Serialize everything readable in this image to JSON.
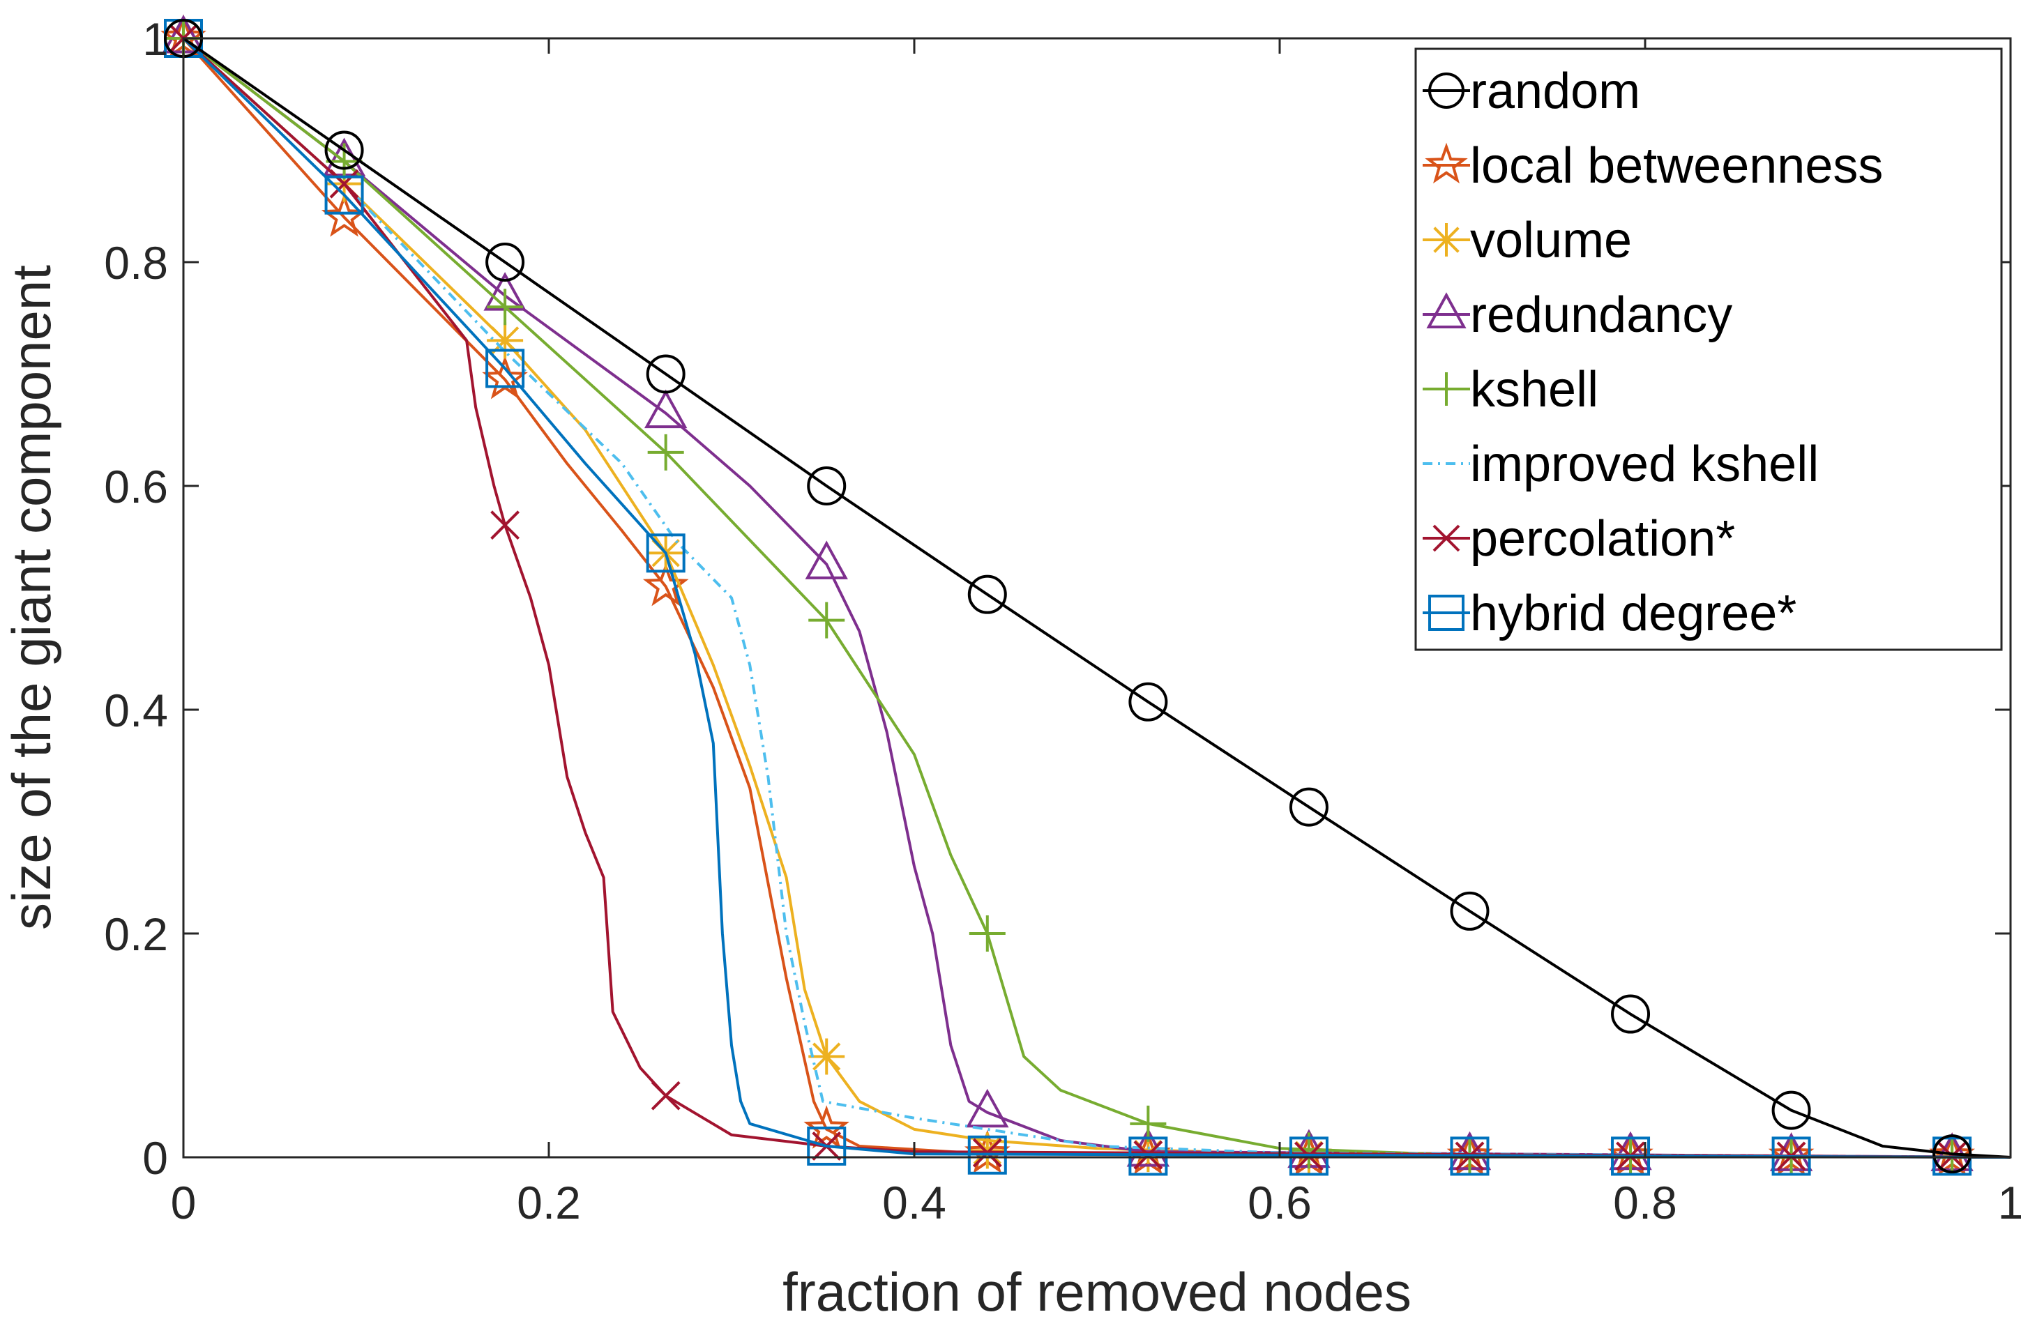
{
  "chart_data": {
    "type": "line",
    "xlabel": "fraction of removed nodes",
    "ylabel": "size of the giant component",
    "xlim": [
      0,
      1
    ],
    "ylim": [
      0,
      1
    ],
    "xticks": [
      0,
      0.2,
      0.4,
      0.6,
      0.8,
      1
    ],
    "yticks": [
      0,
      0.2,
      0.4,
      0.6,
      0.8,
      1
    ],
    "xtick_labels": [
      "0",
      "0.2",
      "0.4",
      "0.6",
      "0.8",
      "1"
    ],
    "ytick_labels": [
      "0",
      "0.2",
      "0.4",
      "0.6",
      "0.8",
      "1"
    ],
    "grid": false,
    "legend_position": "top-right",
    "marker_x": [
      0,
      0.088,
      0.176,
      0.264,
      0.352,
      0.44,
      0.528,
      0.616,
      0.704,
      0.792,
      0.88,
      0.968
    ],
    "series": [
      {
        "name": "random",
        "color": "#000000",
        "dash": "solid",
        "marker": "circle",
        "x": [
          0,
          0.088,
          0.176,
          0.264,
          0.352,
          0.44,
          0.528,
          0.616,
          0.704,
          0.792,
          0.88,
          0.93,
          0.968,
          1.0
        ],
        "y": [
          1.0,
          0.9,
          0.8,
          0.7,
          0.6,
          0.503,
          0.407,
          0.313,
          0.22,
          0.128,
          0.042,
          0.01,
          0.003,
          0.0
        ],
        "marker_y": [
          1.0,
          0.9,
          0.8,
          0.7,
          0.6,
          0.503,
          0.407,
          0.313,
          0.22,
          0.128,
          0.042,
          0.003
        ]
      },
      {
        "name": "local betweenness",
        "color": "#D95319",
        "dash": "solid",
        "marker": "star",
        "x": [
          0,
          0.088,
          0.176,
          0.21,
          0.24,
          0.264,
          0.29,
          0.31,
          0.33,
          0.345,
          0.352,
          0.37,
          0.44,
          1.0
        ],
        "y": [
          1.0,
          0.84,
          0.695,
          0.62,
          0.56,
          0.51,
          0.42,
          0.33,
          0.16,
          0.05,
          0.025,
          0.01,
          0.003,
          0.0
        ],
        "marker_y": [
          1.0,
          0.84,
          0.695,
          0.51,
          0.025,
          0.003,
          0.002,
          0.001,
          0.001,
          0.001,
          0.001,
          0.001
        ]
      },
      {
        "name": "volume",
        "color": "#EDB120",
        "dash": "solid",
        "marker": "asterisk",
        "x": [
          0,
          0.088,
          0.176,
          0.22,
          0.264,
          0.29,
          0.31,
          0.33,
          0.34,
          0.352,
          0.37,
          0.4,
          0.44,
          0.5,
          0.6,
          1.0
        ],
        "y": [
          1.0,
          0.87,
          0.73,
          0.65,
          0.54,
          0.44,
          0.35,
          0.25,
          0.15,
          0.09,
          0.05,
          0.025,
          0.015,
          0.008,
          0.003,
          0.0
        ],
        "marker_y": [
          1.0,
          0.87,
          0.73,
          0.54,
          0.09,
          0.006,
          0.003,
          0.002,
          0.001,
          0.001,
          0.001,
          0.001
        ]
      },
      {
        "name": "redundancy",
        "color": "#7E2F8E",
        "dash": "solid",
        "marker": "triangle",
        "x": [
          0,
          0.088,
          0.176,
          0.264,
          0.31,
          0.352,
          0.37,
          0.385,
          0.4,
          0.41,
          0.42,
          0.43,
          0.44,
          0.48,
          0.528,
          1.0
        ],
        "y": [
          1.0,
          0.89,
          0.77,
          0.665,
          0.6,
          0.53,
          0.47,
          0.38,
          0.26,
          0.2,
          0.1,
          0.05,
          0.04,
          0.015,
          0.005,
          0.0
        ],
        "marker_y": [
          1.0,
          0.89,
          0.77,
          0.665,
          0.53,
          0.04,
          0.005,
          0.004,
          0.002,
          0.002,
          0.001,
          0.001
        ]
      },
      {
        "name": "kshell",
        "color": "#77AC30",
        "dash": "solid",
        "marker": "plus",
        "x": [
          0,
          0.088,
          0.176,
          0.264,
          0.352,
          0.4,
          0.42,
          0.44,
          0.46,
          0.48,
          0.528,
          0.6,
          0.7,
          1.0
        ],
        "y": [
          1.0,
          0.89,
          0.76,
          0.63,
          0.48,
          0.36,
          0.27,
          0.2,
          0.09,
          0.06,
          0.03,
          0.008,
          0.002,
          0.0
        ],
        "marker_y": [
          1.0,
          0.89,
          0.76,
          0.63,
          0.48,
          0.2,
          0.03,
          0.006,
          0.0,
          0.0,
          0.0,
          0.0
        ]
      },
      {
        "name": "improved kshell",
        "color": "#4DBEEE",
        "dash": "dashdot",
        "marker": "none",
        "x": [
          0,
          0.088,
          0.176,
          0.24,
          0.27,
          0.3,
          0.31,
          0.32,
          0.33,
          0.34,
          0.35,
          0.4,
          0.5,
          0.6,
          1.0
        ],
        "y": [
          1.0,
          0.87,
          0.72,
          0.62,
          0.55,
          0.5,
          0.44,
          0.34,
          0.2,
          0.12,
          0.05,
          0.035,
          0.01,
          0.004,
          0.0
        ]
      },
      {
        "name": "percolation*",
        "color": "#A2142F",
        "dash": "solid",
        "marker": "cross",
        "x": [
          0,
          0.088,
          0.155,
          0.16,
          0.17,
          0.176,
          0.19,
          0.2,
          0.21,
          0.22,
          0.23,
          0.235,
          0.25,
          0.264,
          0.3,
          0.352,
          0.4,
          1.0
        ],
        "y": [
          1.0,
          0.87,
          0.73,
          0.67,
          0.6,
          0.565,
          0.5,
          0.44,
          0.34,
          0.29,
          0.25,
          0.13,
          0.08,
          0.055,
          0.02,
          0.01,
          0.005,
          0.0
        ],
        "marker_y": [
          1.0,
          0.87,
          0.565,
          0.055,
          0.01,
          0.004,
          0.002,
          0.001,
          0.001,
          0.001,
          0.001,
          0.001
        ]
      },
      {
        "name": "hybrid degree*",
        "color": "#0072BD",
        "dash": "solid",
        "marker": "square",
        "x": [
          0,
          0.088,
          0.176,
          0.22,
          0.264,
          0.28,
          0.29,
          0.295,
          0.3,
          0.305,
          0.31,
          0.352,
          0.4,
          1.0
        ],
        "y": [
          1.0,
          0.86,
          0.705,
          0.62,
          0.54,
          0.45,
          0.37,
          0.2,
          0.1,
          0.05,
          0.03,
          0.01,
          0.003,
          0.0
        ],
        "marker_y": [
          1.0,
          0.86,
          0.705,
          0.54,
          0.01,
          0.002,
          0.001,
          0.001,
          0.001,
          0.001,
          0.001,
          0.001
        ]
      }
    ]
  }
}
